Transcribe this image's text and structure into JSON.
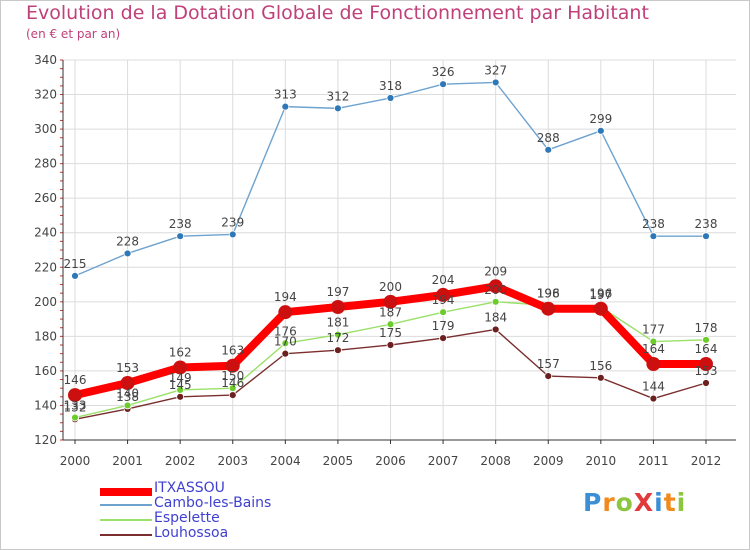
{
  "title": "Evolution de la Dotation Globale de Fonctionnement par Habitant",
  "subtitle": "(en € et par an)",
  "logo_text": "ProXiti",
  "chart_data": {
    "type": "line",
    "title": "Evolution de la Dotation Globale de Fonctionnement par Habitant",
    "subtitle": "(en € et par an)",
    "x": [
      "2000",
      "2001",
      "2002",
      "2003",
      "2004",
      "2005",
      "2006",
      "2007",
      "2008",
      "2009",
      "2010",
      "2011",
      "2012"
    ],
    "ylim": [
      120,
      340
    ],
    "yticks": [
      120,
      140,
      160,
      180,
      200,
      220,
      240,
      260,
      280,
      300,
      320,
      340
    ],
    "grid": true,
    "legend_position": "bottom-left",
    "series": [
      {
        "name": "ITXASSOU",
        "color": "#ff0000",
        "marker_color": "#cc1010",
        "values": [
          146,
          153,
          162,
          163,
          194,
          197,
          200,
          204,
          209,
          196,
          196,
          164,
          164
        ]
      },
      {
        "name": "Cambo-les-Bains",
        "color": "#6ea2cf",
        "marker_color": "#2f78b8",
        "values": [
          215,
          228,
          238,
          239,
          313,
          312,
          318,
          326,
          327,
          288,
          299,
          238,
          238
        ]
      },
      {
        "name": "Espelette",
        "color": "#9ae06a",
        "marker_color": "#6ccc2c",
        "values": [
          133,
          140,
          149,
          150,
          176,
          181,
          187,
          194,
          200,
          198,
          197,
          177,
          178
        ]
      },
      {
        "name": "Louhossoa",
        "color": "#7b2e2e",
        "marker_color": "#6b1f1f",
        "values": [
          132,
          138,
          145,
          146,
          170,
          172,
          175,
          179,
          184,
          157,
          156,
          144,
          153
        ]
      }
    ]
  }
}
